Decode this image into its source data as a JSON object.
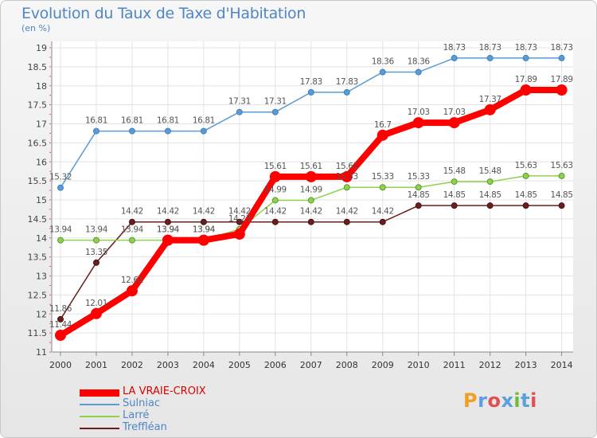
{
  "title": "Evolution du Taux de Taxe d'Habitation",
  "unit_label": "(en %)",
  "brand": "Proxiti",
  "brand_colors": [
    "#f0a020",
    "#5aa0dc",
    "#e05050",
    "#5aa0dc",
    "#70b840",
    "#5aa0dc",
    "#e05050"
  ],
  "chart_data": {
    "type": "line",
    "title": "Evolution du Taux de Taxe d'Habitation",
    "ylabel": "(en %)",
    "xlabel": "",
    "categories": [
      "2000",
      "2001",
      "2002",
      "2003",
      "2004",
      "2005",
      "2006",
      "2007",
      "2008",
      "2009",
      "2010",
      "2011",
      "2012",
      "2013",
      "2014"
    ],
    "ylim": [
      11,
      19
    ],
    "yticks": [
      "11",
      "11.5",
      "12",
      "12.5",
      "13",
      "13.5",
      "14",
      "14.5",
      "15",
      "15.5",
      "16",
      "16.5",
      "17",
      "17.5",
      "18",
      "18.5",
      "19"
    ],
    "grid": true,
    "legend_position": "bottom-left",
    "series": [
      {
        "name": "LA VRAIE-CROIX",
        "color": "#ff0000",
        "values": [
          11.44,
          12.01,
          12.61,
          13.94,
          13.94,
          14.1,
          15.61,
          15.61,
          15.61,
          16.7,
          17.03,
          17.03,
          17.37,
          17.89,
          17.89
        ],
        "labels": [
          "11.44",
          "12.01",
          "12.61",
          "13.94",
          "13.94",
          "",
          "15.61",
          "15.61",
          "15.61",
          "16.7",
          "17.03",
          "17.03",
          "17.37",
          "17.89",
          "17.89"
        ]
      },
      {
        "name": "Sulniac",
        "color": "#5b9bd5",
        "values": [
          15.32,
          16.81,
          16.81,
          16.81,
          16.81,
          17.31,
          17.31,
          17.83,
          17.83,
          18.36,
          18.36,
          18.73,
          18.73,
          18.73,
          18.73
        ],
        "labels": [
          "15.32",
          "16.81",
          "16.81",
          "16.81",
          "16.81",
          "17.31",
          "17.31",
          "17.83",
          "17.83",
          "18.36",
          "18.36",
          "18.73",
          "18.73",
          "18.73",
          "18.73"
        ]
      },
      {
        "name": "Larré",
        "color": "#8fd14f",
        "values": [
          13.94,
          13.94,
          13.94,
          13.94,
          13.94,
          14.23,
          14.99,
          14.99,
          15.33,
          15.33,
          15.33,
          15.48,
          15.48,
          15.63,
          15.63
        ],
        "labels": [
          "13.94",
          "13.94",
          "13.94",
          "13.94",
          "13.94",
          "14.23",
          "14.99",
          "14.99",
          "15.33",
          "15.33",
          "15.33",
          "15.48",
          "15.48",
          "15.63",
          "15.63"
        ]
      },
      {
        "name": "Treffléan",
        "color": "#6b1e1e",
        "values": [
          11.86,
          13.35,
          14.42,
          14.42,
          14.42,
          14.42,
          14.42,
          14.42,
          14.42,
          14.42,
          14.85,
          14.85,
          14.85,
          14.85,
          14.85
        ],
        "labels": [
          "11.86",
          "13.35",
          "14.42",
          "14.42",
          "14.42",
          "14.42",
          "14.42",
          "14.42",
          "14.42",
          "14.42",
          "14.85",
          "14.85",
          "14.85",
          "14.85",
          "14.85"
        ]
      }
    ]
  }
}
